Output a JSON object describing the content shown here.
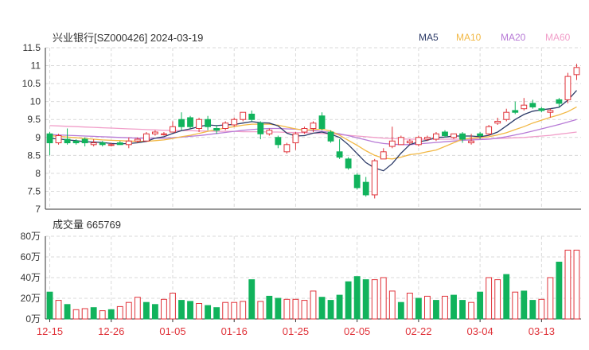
{
  "colors": {
    "up": "#e0333a",
    "down": "#11b35c",
    "ma5": "#2b3a67",
    "ma10": "#f2b844",
    "ma20": "#b77ad6",
    "ma60": "#f19ec9",
    "grid": "#d9d9d9",
    "text": "#333333",
    "xtick": "#e0333a"
  },
  "chart_data": [
    {
      "type": "candlestick",
      "title": "兴业银行[SZ000426] 2024-03-19",
      "legend": [
        "MA5",
        "MA10",
        "MA20",
        "MA60"
      ],
      "legend_position": "top-right",
      "ylim": [
        7,
        11.5
      ],
      "yticks": [
        "11.5",
        "11",
        "10.5",
        "10",
        "9.5",
        "9",
        "8.5",
        "8",
        "7.5",
        "7"
      ],
      "ytick_values": [
        11.5,
        11,
        10.5,
        10,
        9.5,
        9,
        8.5,
        8,
        7.5,
        7
      ],
      "grid": true,
      "candles": [
        [
          9.1,
          8.85,
          9.15,
          8.5
        ],
        [
          8.85,
          9.05,
          9.1,
          8.8
        ],
        [
          8.95,
          8.85,
          9.25,
          8.8
        ],
        [
          8.9,
          8.85,
          8.95,
          8.8
        ],
        [
          8.95,
          8.85,
          9.0,
          8.75
        ],
        [
          8.8,
          8.85,
          8.95,
          8.75
        ],
        [
          8.85,
          8.8,
          8.9,
          8.75
        ],
        [
          8.8,
          8.8,
          8.85,
          8.75
        ],
        [
          8.85,
          8.8,
          8.9,
          8.8
        ],
        [
          8.8,
          8.9,
          9.0,
          8.7
        ],
        [
          8.9,
          8.95,
          9.0,
          8.85
        ],
        [
          8.9,
          9.1,
          9.15,
          8.9
        ],
        [
          9.1,
          9.15,
          9.2,
          9.05
        ],
        [
          9.1,
          9.1,
          9.15,
          9.05
        ],
        [
          9.15,
          9.3,
          9.45,
          9.15
        ],
        [
          9.5,
          9.3,
          9.7,
          9.2
        ],
        [
          9.55,
          9.3,
          9.6,
          9.25
        ],
        [
          9.25,
          9.5,
          9.55,
          9.15
        ],
        [
          9.5,
          9.3,
          9.6,
          9.2
        ],
        [
          9.25,
          9.2,
          9.35,
          9.1
        ],
        [
          9.25,
          9.4,
          9.45,
          9.2
        ],
        [
          9.35,
          9.5,
          9.55,
          9.3
        ],
        [
          9.5,
          9.7,
          9.7,
          9.45
        ],
        [
          9.65,
          9.5,
          9.75,
          9.45
        ],
        [
          9.4,
          9.1,
          9.45,
          8.95
        ],
        [
          9.1,
          9.2,
          9.25,
          9.05
        ],
        [
          9.0,
          8.8,
          9.05,
          8.7
        ],
        [
          8.6,
          8.8,
          8.85,
          8.55
        ],
        [
          8.85,
          9.1,
          9.15,
          8.65
        ],
        [
          9.15,
          9.25,
          9.3,
          9.1
        ],
        [
          9.25,
          9.4,
          9.45,
          9.15
        ],
        [
          9.6,
          9.25,
          9.7,
          9.2
        ],
        [
          9.15,
          8.9,
          9.2,
          8.85
        ],
        [
          8.6,
          8.45,
          8.95,
          8.4
        ],
        [
          8.4,
          8.15,
          8.45,
          8.1
        ],
        [
          7.95,
          7.6,
          8.0,
          7.55
        ],
        [
          7.75,
          7.4,
          7.9,
          7.35
        ],
        [
          7.4,
          8.35,
          8.4,
          7.3
        ],
        [
          8.4,
          8.6,
          8.7,
          8.4
        ],
        [
          8.75,
          8.9,
          9.3,
          8.7
        ],
        [
          8.8,
          9.0,
          9.05,
          8.8
        ],
        [
          8.85,
          8.9,
          8.95,
          8.8
        ],
        [
          8.8,
          9.0,
          9.05,
          8.75
        ],
        [
          8.95,
          9.0,
          9.05,
          8.9
        ],
        [
          8.95,
          9.1,
          9.15,
          8.9
        ],
        [
          9.15,
          9.05,
          9.2,
          9.0
        ],
        [
          9.0,
          9.1,
          9.1,
          8.95
        ],
        [
          9.1,
          8.95,
          9.15,
          8.85
        ],
        [
          8.85,
          8.9,
          9.1,
          8.8
        ],
        [
          9.1,
          9.05,
          9.15,
          8.95
        ],
        [
          9.1,
          9.3,
          9.35,
          9.05
        ],
        [
          9.4,
          9.45,
          9.55,
          9.35
        ],
        [
          9.5,
          9.7,
          9.8,
          9.45
        ],
        [
          9.75,
          9.7,
          10.0,
          9.65
        ],
        [
          9.8,
          9.9,
          10.1,
          9.75
        ],
        [
          9.95,
          9.85,
          10.05,
          9.8
        ],
        [
          9.8,
          9.75,
          9.85,
          9.7
        ],
        [
          9.7,
          9.75,
          9.8,
          9.55
        ],
        [
          10.05,
          9.95,
          10.1,
          9.85
        ],
        [
          10.05,
          10.7,
          10.8,
          9.95
        ],
        [
          10.75,
          10.95,
          11.05,
          10.6
        ]
      ],
      "ma5": [
        8.97,
        8.96,
        8.93,
        8.91,
        8.88,
        8.87,
        8.86,
        8.83,
        8.82,
        8.83,
        8.85,
        8.89,
        8.98,
        9.02,
        9.11,
        9.19,
        9.24,
        9.3,
        9.35,
        9.33,
        9.35,
        9.36,
        9.4,
        9.44,
        9.41,
        9.4,
        9.32,
        9.12,
        9.04,
        9.05,
        9.12,
        9.15,
        9.09,
        9.0,
        8.8,
        8.55,
        8.3,
        8.15,
        8.07,
        8.27,
        8.56,
        8.8,
        8.88,
        8.92,
        9.0,
        9.01,
        9.04,
        9.04,
        9.04,
        9.02,
        9.06,
        9.15,
        9.32,
        9.5,
        9.64,
        9.73,
        9.77,
        9.8,
        9.84,
        10.04,
        10.31
      ],
      "ma10": [
        9.05,
        9.03,
        9.01,
        8.99,
        8.97,
        8.95,
        8.93,
        8.92,
        8.91,
        8.9,
        8.89,
        8.89,
        8.91,
        8.93,
        8.97,
        9.02,
        9.06,
        9.11,
        9.17,
        9.22,
        9.26,
        9.3,
        9.34,
        9.37,
        9.37,
        9.37,
        9.34,
        9.29,
        9.24,
        9.2,
        9.22,
        9.23,
        9.18,
        9.06,
        8.92,
        8.78,
        8.63,
        8.5,
        8.42,
        8.4,
        8.45,
        8.52,
        8.55,
        8.6,
        8.65,
        8.75,
        8.85,
        8.95,
        8.98,
        9.0,
        9.02,
        9.07,
        9.13,
        9.22,
        9.3,
        9.4,
        9.48,
        9.56,
        9.63,
        9.72,
        9.85
      ],
      "ma20": [
        9.08,
        9.07,
        9.06,
        9.05,
        9.04,
        9.03,
        9.02,
        9.01,
        9.0,
        8.99,
        8.98,
        8.98,
        8.98,
        8.98,
        8.99,
        9.01,
        9.03,
        9.05,
        9.08,
        9.11,
        9.14,
        9.17,
        9.2,
        9.22,
        9.24,
        9.25,
        9.25,
        9.24,
        9.23,
        9.21,
        9.19,
        9.17,
        9.14,
        9.1,
        9.05,
        8.99,
        8.93,
        8.87,
        8.83,
        8.81,
        8.8,
        8.8,
        8.82,
        8.84,
        8.86,
        8.88,
        8.9,
        8.92,
        8.93,
        8.94,
        8.95,
        8.98,
        9.02,
        9.07,
        9.12,
        9.18,
        9.24,
        9.3,
        9.36,
        9.43,
        9.5
      ],
      "ma60": [
        9.33,
        9.32,
        9.31,
        9.3,
        9.29,
        9.28,
        9.27,
        9.26,
        9.25,
        9.24,
        9.23,
        9.22,
        9.21,
        9.2,
        9.2,
        9.19,
        9.19,
        9.18,
        9.18,
        9.17,
        9.17,
        9.17,
        9.16,
        9.16,
        9.16,
        9.15,
        9.15,
        9.14,
        9.14,
        9.13,
        9.12,
        9.11,
        9.1,
        9.08,
        9.06,
        9.04,
        9.02,
        9.0,
        8.98,
        8.97,
        8.96,
        8.95,
        8.95,
        8.95,
        8.95,
        8.95,
        8.95,
        8.95,
        8.96,
        8.96,
        8.96,
        8.97,
        8.98,
        8.99,
        9.0,
        9.02,
        9.04,
        9.06,
        9.09,
        9.12,
        9.15
      ]
    },
    {
      "type": "bar",
      "title": "成交量 665769",
      "ylim": [
        0,
        80
      ],
      "yticks": [
        "80万",
        "60万",
        "40万",
        "20万",
        "0万"
      ],
      "ytick_values": [
        80,
        60,
        40,
        20,
        0
      ],
      "xticks": [
        "12-15",
        "12-26",
        "01-05",
        "01-16",
        "01-25",
        "02-05",
        "02-22",
        "03-04",
        "03-13"
      ],
      "xtick_indices": [
        0,
        7,
        14,
        21,
        28,
        35,
        42,
        49,
        56
      ],
      "volumes": [
        26,
        18,
        14,
        9,
        10,
        11,
        8,
        9,
        12,
        16,
        21,
        16,
        14,
        19,
        25,
        18,
        17,
        15,
        13,
        11,
        16,
        16,
        17,
        38,
        17,
        22,
        20,
        19,
        19,
        18,
        27,
        21,
        18,
        23,
        36,
        41,
        38,
        38,
        40,
        27,
        16,
        25,
        20,
        22,
        18,
        22,
        23,
        18,
        16,
        26,
        40,
        38,
        43,
        26,
        27,
        18,
        19,
        40,
        55,
        66.5769,
        66.5769
      ],
      "up": [
        false,
        true,
        false,
        true,
        true,
        false,
        true,
        false,
        true,
        true,
        true,
        false,
        false,
        true,
        true,
        false,
        false,
        true,
        false,
        false,
        true,
        true,
        true,
        false,
        true,
        false,
        false,
        true,
        true,
        true,
        true,
        false,
        false,
        false,
        false,
        false,
        false,
        true,
        true,
        true,
        false,
        true,
        false,
        true,
        false,
        true,
        false,
        false,
        true,
        false,
        true,
        true,
        false,
        true,
        false,
        false,
        true,
        true,
        false,
        true,
        true
      ]
    }
  ]
}
